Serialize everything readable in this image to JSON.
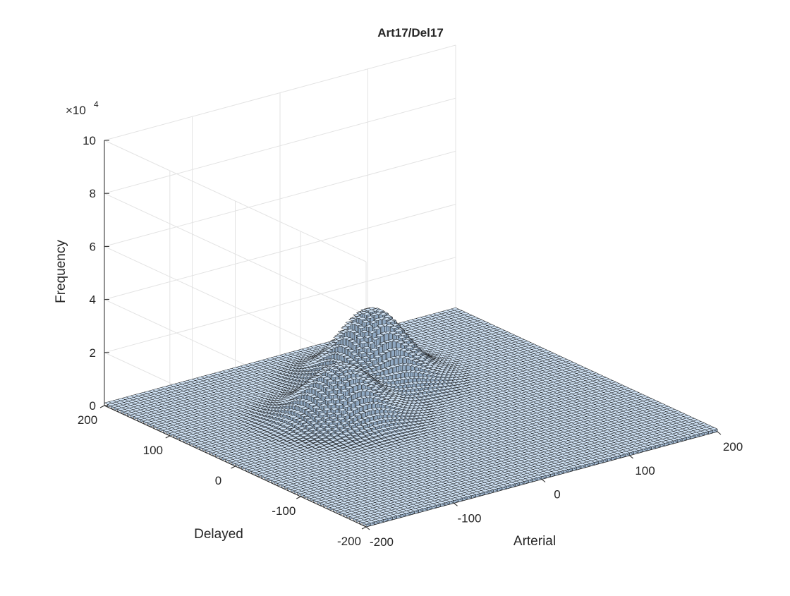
{
  "chart_data": {
    "type": "bar3",
    "title": "Art17/Del17",
    "xlabel": "Arterial",
    "ylabel": "Delayed",
    "zlabel": "Frequency",
    "z_exponent_label": "×10",
    "z_exponent": "4",
    "xlim": [
      -200,
      200
    ],
    "ylim": [
      -200,
      200
    ],
    "zlim": [
      0,
      100000
    ],
    "x_ticks": [
      "-200",
      "-100",
      "0",
      "100",
      "200"
    ],
    "y_ticks": [
      "-200",
      "-100",
      "0",
      "100",
      "200"
    ],
    "z_ticks": [
      "0",
      "2",
      "4",
      "6",
      "8",
      "10"
    ],
    "grid": "on",
    "bar_color": "#cfe2f5",
    "bins_per_axis": 80,
    "peaks": [
      {
        "x": -50,
        "y": 40,
        "height": 19000,
        "spread": 30
      },
      {
        "x": 30,
        "y": 100,
        "height": 26000,
        "spread": 30
      }
    ],
    "background_level": 1000
  }
}
